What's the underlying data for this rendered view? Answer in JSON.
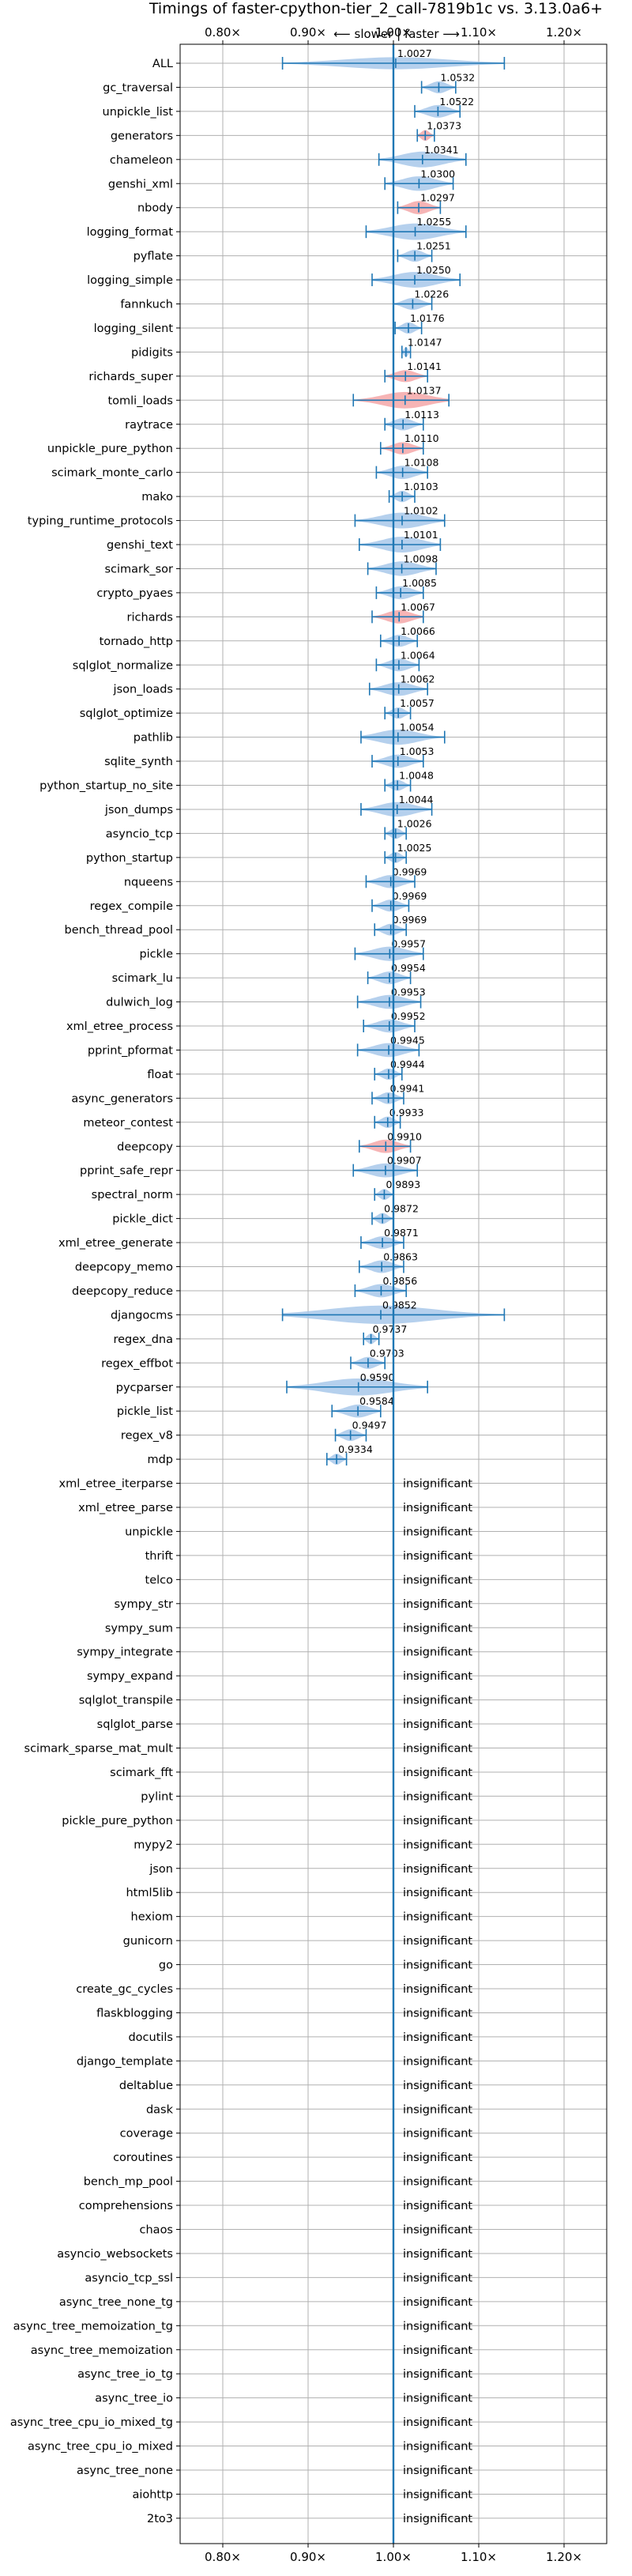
{
  "chart_data": {
    "type": "violin",
    "title": "Timings of faster-cpython-tier_2_call-7819b1c vs. 3.13.0a6+",
    "direction_label": "⟵ slower | faster ⟶",
    "xlim": [
      0.75,
      1.25
    ],
    "x_ticks": [
      0.8,
      0.9,
      1.0,
      1.1,
      1.2
    ],
    "x_tick_labels": [
      "0.80×",
      "0.90×",
      "1.00×",
      "1.10×",
      "1.20×"
    ],
    "reference_line": 1.0,
    "insignificant_label": "insignificant",
    "colors": {
      "faster": "#a8c8ea",
      "slower": "#f4a7a8",
      "accent": "#1f77b4"
    },
    "rows": [
      {
        "name": "ALL",
        "value": 1.0027,
        "label": "1.0027",
        "color": "faster",
        "lo": 0.87,
        "hi": 1.13,
        "spread": 0.02
      },
      {
        "name": "gc_traversal",
        "value": 1.0532,
        "label": "1.0532",
        "color": "faster",
        "lo": 1.033,
        "hi": 1.073,
        "spread": 0.02
      },
      {
        "name": "unpickle_list",
        "value": 1.0522,
        "label": "1.0522",
        "color": "faster",
        "lo": 1.025,
        "hi": 1.078,
        "spread": 0.025
      },
      {
        "name": "generators",
        "value": 1.0373,
        "label": "1.0373",
        "color": "slower",
        "lo": 1.028,
        "hi": 1.048,
        "spread": 0.01
      },
      {
        "name": "chameleon",
        "value": 1.0341,
        "label": "1.0341",
        "color": "faster",
        "lo": 0.983,
        "hi": 1.085,
        "spread": 0.05
      },
      {
        "name": "genshi_xml",
        "value": 1.03,
        "label": "1.0300",
        "color": "faster",
        "lo": 0.99,
        "hi": 1.07,
        "spread": 0.04
      },
      {
        "name": "nbody",
        "value": 1.0297,
        "label": "1.0297",
        "color": "slower",
        "lo": 1.005,
        "hi": 1.055,
        "spread": 0.03
      },
      {
        "name": "logging_format",
        "value": 1.0255,
        "label": "1.0255",
        "color": "faster",
        "lo": 0.968,
        "hi": 1.085,
        "spread": 0.055
      },
      {
        "name": "pyflate",
        "value": 1.0251,
        "label": "1.0251",
        "color": "faster",
        "lo": 1.005,
        "hi": 1.045,
        "spread": 0.02
      },
      {
        "name": "logging_simple",
        "value": 1.025,
        "label": "1.0250",
        "color": "faster",
        "lo": 0.975,
        "hi": 1.078,
        "spread": 0.05
      },
      {
        "name": "fannkuch",
        "value": 1.0226,
        "label": "1.0226",
        "color": "faster",
        "lo": 1.0,
        "hi": 1.045,
        "spread": 0.02
      },
      {
        "name": "logging_silent",
        "value": 1.0176,
        "label": "1.0176",
        "color": "faster",
        "lo": 1.002,
        "hi": 1.033,
        "spread": 0.015
      },
      {
        "name": "pidigits",
        "value": 1.0147,
        "label": "1.0147",
        "color": "faster",
        "lo": 1.01,
        "hi": 1.02,
        "spread": 0.006
      },
      {
        "name": "richards_super",
        "value": 1.0141,
        "label": "1.0141",
        "color": "slower",
        "lo": 0.99,
        "hi": 1.04,
        "spread": 0.02
      },
      {
        "name": "tomli_loads",
        "value": 1.0137,
        "label": "1.0137",
        "color": "slower",
        "lo": 0.953,
        "hi": 1.065,
        "spread": 0.055
      },
      {
        "name": "raytrace",
        "value": 1.0113,
        "label": "1.0113",
        "color": "faster",
        "lo": 0.99,
        "hi": 1.035,
        "spread": 0.022
      },
      {
        "name": "unpickle_pure_python",
        "value": 1.011,
        "label": "1.0110",
        "color": "slower",
        "lo": 0.985,
        "hi": 1.035,
        "spread": 0.022
      },
      {
        "name": "scimark_monte_carlo",
        "value": 1.0108,
        "label": "1.0108",
        "color": "faster",
        "lo": 0.98,
        "hi": 1.04,
        "spread": 0.03
      },
      {
        "name": "mako",
        "value": 1.0103,
        "label": "1.0103",
        "color": "faster",
        "lo": 0.995,
        "hi": 1.025,
        "spread": 0.015
      },
      {
        "name": "typing_runtime_protocols",
        "value": 1.0102,
        "label": "1.0102",
        "color": "faster",
        "lo": 0.955,
        "hi": 1.06,
        "spread": 0.05
      },
      {
        "name": "genshi_text",
        "value": 1.0101,
        "label": "1.0101",
        "color": "faster",
        "lo": 0.96,
        "hi": 1.055,
        "spread": 0.05
      },
      {
        "name": "scimark_sor",
        "value": 1.0098,
        "label": "1.0098",
        "color": "faster",
        "lo": 0.97,
        "hi": 1.05,
        "spread": 0.04
      },
      {
        "name": "crypto_pyaes",
        "value": 1.0085,
        "label": "1.0085",
        "color": "faster",
        "lo": 0.98,
        "hi": 1.035,
        "spread": 0.028
      },
      {
        "name": "richards",
        "value": 1.0067,
        "label": "1.0067",
        "color": "slower",
        "lo": 0.975,
        "hi": 1.035,
        "spread": 0.03
      },
      {
        "name": "tornado_http",
        "value": 1.0066,
        "label": "1.0066",
        "color": "faster",
        "lo": 0.985,
        "hi": 1.028,
        "spread": 0.02
      },
      {
        "name": "sqlglot_normalize",
        "value": 1.0064,
        "label": "1.0064",
        "color": "faster",
        "lo": 0.98,
        "hi": 1.03,
        "spread": 0.025
      },
      {
        "name": "json_loads",
        "value": 1.0062,
        "label": "1.0062",
        "color": "faster",
        "lo": 0.972,
        "hi": 1.04,
        "spread": 0.033
      },
      {
        "name": "sqlglot_optimize",
        "value": 1.0057,
        "label": "1.0057",
        "color": "faster",
        "lo": 0.99,
        "hi": 1.02,
        "spread": 0.015
      },
      {
        "name": "pathlib",
        "value": 1.0054,
        "label": "1.0054",
        "color": "faster",
        "lo": 0.962,
        "hi": 1.06,
        "spread": 0.045
      },
      {
        "name": "sqlite_synth",
        "value": 1.0053,
        "label": "1.0053",
        "color": "faster",
        "lo": 0.975,
        "hi": 1.035,
        "spread": 0.03
      },
      {
        "name": "python_startup_no_site",
        "value": 1.0048,
        "label": "1.0048",
        "color": "faster",
        "lo": 0.99,
        "hi": 1.02,
        "spread": 0.012
      },
      {
        "name": "json_dumps",
        "value": 1.0044,
        "label": "1.0044",
        "color": "faster",
        "lo": 0.962,
        "hi": 1.045,
        "spread": 0.04
      },
      {
        "name": "asyncio_tcp",
        "value": 1.0026,
        "label": "1.0026",
        "color": "faster",
        "lo": 0.99,
        "hi": 1.015,
        "spread": 0.012
      },
      {
        "name": "python_startup",
        "value": 1.0025,
        "label": "1.0025",
        "color": "faster",
        "lo": 0.99,
        "hi": 1.015,
        "spread": 0.012
      },
      {
        "name": "nqueens",
        "value": 0.9969,
        "label": "0.9969",
        "color": "faster",
        "lo": 0.968,
        "hi": 1.025,
        "spread": 0.028
      },
      {
        "name": "regex_compile",
        "value": 0.9969,
        "label": "0.9969",
        "color": "faster",
        "lo": 0.975,
        "hi": 1.018,
        "spread": 0.02
      },
      {
        "name": "bench_thread_pool",
        "value": 0.9969,
        "label": "0.9969",
        "color": "faster",
        "lo": 0.978,
        "hi": 1.015,
        "spread": 0.018
      },
      {
        "name": "pickle",
        "value": 0.9957,
        "label": "0.9957",
        "color": "faster",
        "lo": 0.955,
        "hi": 1.035,
        "spread": 0.038
      },
      {
        "name": "scimark_lu",
        "value": 0.9954,
        "label": "0.9954",
        "color": "faster",
        "lo": 0.97,
        "hi": 1.02,
        "spread": 0.025
      },
      {
        "name": "dulwich_log",
        "value": 0.9953,
        "label": "0.9953",
        "color": "faster",
        "lo": 0.958,
        "hi": 1.032,
        "spread": 0.035
      },
      {
        "name": "xml_etree_process",
        "value": 0.9952,
        "label": "0.9952",
        "color": "faster",
        "lo": 0.965,
        "hi": 1.025,
        "spread": 0.028
      },
      {
        "name": "pprint_pformat",
        "value": 0.9945,
        "label": "0.9945",
        "color": "faster",
        "lo": 0.958,
        "hi": 1.03,
        "spread": 0.035
      },
      {
        "name": "float",
        "value": 0.9944,
        "label": "0.9944",
        "color": "faster",
        "lo": 0.978,
        "hi": 1.01,
        "spread": 0.015
      },
      {
        "name": "async_generators",
        "value": 0.9941,
        "label": "0.9941",
        "color": "faster",
        "lo": 0.975,
        "hi": 1.012,
        "spread": 0.018
      },
      {
        "name": "meteor_contest",
        "value": 0.9933,
        "label": "0.9933",
        "color": "faster",
        "lo": 0.978,
        "hi": 1.008,
        "spread": 0.015
      },
      {
        "name": "deepcopy",
        "value": 0.991,
        "label": "0.9910",
        "color": "slower",
        "lo": 0.96,
        "hi": 1.02,
        "spread": 0.03
      },
      {
        "name": "pprint_safe_repr",
        "value": 0.9907,
        "label": "0.9907",
        "color": "faster",
        "lo": 0.953,
        "hi": 1.028,
        "spread": 0.035
      },
      {
        "name": "spectral_norm",
        "value": 0.9893,
        "label": "0.9893",
        "color": "faster",
        "lo": 0.978,
        "hi": 1.0,
        "spread": 0.012
      },
      {
        "name": "pickle_dict",
        "value": 0.9872,
        "label": "0.9872",
        "color": "faster",
        "lo": 0.975,
        "hi": 1.0,
        "spread": 0.012
      },
      {
        "name": "xml_etree_generate",
        "value": 0.9871,
        "label": "0.9871",
        "color": "faster",
        "lo": 0.962,
        "hi": 1.012,
        "spread": 0.025
      },
      {
        "name": "deepcopy_memo",
        "value": 0.9863,
        "label": "0.9863",
        "color": "faster",
        "lo": 0.96,
        "hi": 1.012,
        "spread": 0.025
      },
      {
        "name": "deepcopy_reduce",
        "value": 0.9856,
        "label": "0.9856",
        "color": "faster",
        "lo": 0.955,
        "hi": 1.015,
        "spread": 0.03
      },
      {
        "name": "djangocms",
        "value": 0.9852,
        "label": "0.9852",
        "color": "faster",
        "lo": 0.87,
        "hi": 1.13,
        "spread": 0.07
      },
      {
        "name": "regex_dna",
        "value": 0.9737,
        "label": "0.9737",
        "color": "faster",
        "lo": 0.965,
        "hi": 0.983,
        "spread": 0.009
      },
      {
        "name": "regex_effbot",
        "value": 0.9703,
        "label": "0.9703",
        "color": "faster",
        "lo": 0.95,
        "hi": 0.99,
        "spread": 0.02
      },
      {
        "name": "pycparser",
        "value": 0.959,
        "label": "0.9590",
        "color": "faster",
        "lo": 0.875,
        "hi": 1.04,
        "spread": 0.06
      },
      {
        "name": "pickle_list",
        "value": 0.9584,
        "label": "0.9584",
        "color": "faster",
        "lo": 0.928,
        "hi": 0.985,
        "spread": 0.028
      },
      {
        "name": "regex_v8",
        "value": 0.9497,
        "label": "0.9497",
        "color": "faster",
        "lo": 0.932,
        "hi": 0.968,
        "spread": 0.018
      },
      {
        "name": "mdp",
        "value": 0.9334,
        "label": "0.9334",
        "color": "faster",
        "lo": 0.922,
        "hi": 0.945,
        "spread": 0.012
      },
      {
        "name": "xml_etree_iterparse",
        "insignificant": true
      },
      {
        "name": "xml_etree_parse",
        "insignificant": true
      },
      {
        "name": "unpickle",
        "insignificant": true
      },
      {
        "name": "thrift",
        "insignificant": true
      },
      {
        "name": "telco",
        "insignificant": true
      },
      {
        "name": "sympy_str",
        "insignificant": true
      },
      {
        "name": "sympy_sum",
        "insignificant": true
      },
      {
        "name": "sympy_integrate",
        "insignificant": true
      },
      {
        "name": "sympy_expand",
        "insignificant": true
      },
      {
        "name": "sqlglot_transpile",
        "insignificant": true
      },
      {
        "name": "sqlglot_parse",
        "insignificant": true
      },
      {
        "name": "scimark_sparse_mat_mult",
        "insignificant": true
      },
      {
        "name": "scimark_fft",
        "insignificant": true
      },
      {
        "name": "pylint",
        "insignificant": true
      },
      {
        "name": "pickle_pure_python",
        "insignificant": true
      },
      {
        "name": "mypy2",
        "insignificant": true
      },
      {
        "name": "json",
        "insignificant": true
      },
      {
        "name": "html5lib",
        "insignificant": true
      },
      {
        "name": "hexiom",
        "insignificant": true
      },
      {
        "name": "gunicorn",
        "insignificant": true
      },
      {
        "name": "go",
        "insignificant": true
      },
      {
        "name": "create_gc_cycles",
        "insignificant": true
      },
      {
        "name": "flaskblogging",
        "insignificant": true
      },
      {
        "name": "docutils",
        "insignificant": true
      },
      {
        "name": "django_template",
        "insignificant": true
      },
      {
        "name": "deltablue",
        "insignificant": true
      },
      {
        "name": "dask",
        "insignificant": true
      },
      {
        "name": "coverage",
        "insignificant": true
      },
      {
        "name": "coroutines",
        "insignificant": true
      },
      {
        "name": "bench_mp_pool",
        "insignificant": true
      },
      {
        "name": "comprehensions",
        "insignificant": true
      },
      {
        "name": "chaos",
        "insignificant": true
      },
      {
        "name": "asyncio_websockets",
        "insignificant": true
      },
      {
        "name": "asyncio_tcp_ssl",
        "insignificant": true
      },
      {
        "name": "async_tree_none_tg",
        "insignificant": true
      },
      {
        "name": "async_tree_memoization_tg",
        "insignificant": true
      },
      {
        "name": "async_tree_memoization",
        "insignificant": true
      },
      {
        "name": "async_tree_io_tg",
        "insignificant": true
      },
      {
        "name": "async_tree_io",
        "insignificant": true
      },
      {
        "name": "async_tree_cpu_io_mixed_tg",
        "insignificant": true
      },
      {
        "name": "async_tree_cpu_io_mixed",
        "insignificant": true
      },
      {
        "name": "async_tree_none",
        "insignificant": true
      },
      {
        "name": "aiohttp",
        "insignificant": true
      },
      {
        "name": "2to3",
        "insignificant": true
      }
    ]
  }
}
